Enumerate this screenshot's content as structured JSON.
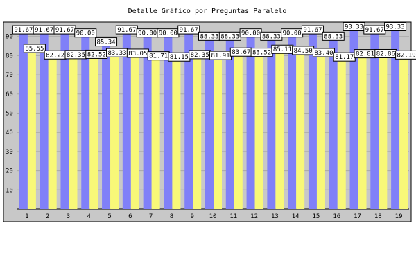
{
  "chart_data": {
    "type": "bar",
    "title": "Detalle Gráfico por Preguntas Paralelo",
    "xlabel": "",
    "ylabel": "",
    "ylim": [
      0,
      100
    ],
    "yticks": [
      10,
      20,
      30,
      40,
      50,
      60,
      70,
      80,
      90
    ],
    "grid": true,
    "legend": "none",
    "categories": [
      "1",
      "2",
      "3",
      "4",
      "5",
      "6",
      "7",
      "8",
      "9",
      "10",
      "11",
      "12",
      "13",
      "14",
      "15",
      "16",
      "17",
      "18",
      "19"
    ],
    "series": [
      {
        "color": "#8080f8",
        "values": [
          91.67,
          91.67,
          91.67,
          90.0,
          85.34,
          91.67,
          90.0,
          90.0,
          91.67,
          88.33,
          88.33,
          90.0,
          88.33,
          90.0,
          91.67,
          88.33,
          93.33,
          91.67,
          93.33
        ],
        "labels": [
          "91.67",
          "91.67",
          "91.67",
          "90.00",
          "85.34",
          "91.67",
          "90.00",
          "90.00",
          "91.67",
          "88.33",
          "88.33",
          "90.00",
          "88.33",
          "90.00",
          "91.67",
          "88.33",
          "93.33",
          "91.67",
          "93.33"
        ]
      },
      {
        "color": "#f8f878",
        "values": [
          85.55,
          82.22,
          82.35,
          82.52,
          83.33,
          83.05,
          81.71,
          81.15,
          82.35,
          81.91,
          83.67,
          83.52,
          85.11,
          84.5,
          83.4,
          81.17,
          82.81,
          82.86,
          82.19
        ],
        "labels": [
          "85.55",
          "82.22",
          "82.35",
          "82.52",
          "83.33",
          "83.05",
          "81.71",
          "81.15",
          "82.35",
          "81.91",
          "83.67",
          "83.52",
          "85.11",
          "84.50",
          "83.40",
          "81.17",
          "82.81",
          "82.86",
          "82.19"
        ]
      }
    ],
    "colors": {
      "plot_background": "#c8c8c8",
      "frame": "#000000",
      "category_label": "#000000",
      "category_label_faded": "#ffffff"
    },
    "faded_category_labels": [
      "13",
      "14",
      "16",
      "18"
    ]
  }
}
